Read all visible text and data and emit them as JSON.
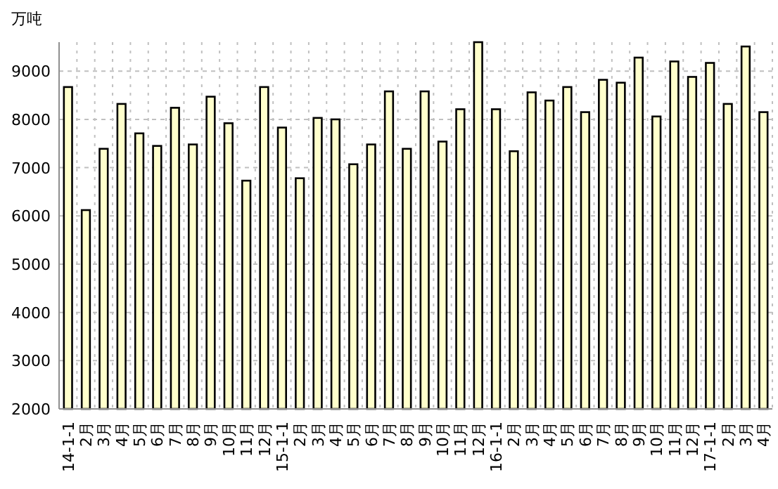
{
  "chart_data": {
    "type": "bar",
    "ylabel": "万吨",
    "categories": [
      "14-1-1",
      "2月",
      "3月",
      "4月",
      "5月",
      "6月",
      "7月",
      "8月",
      "9月",
      "10月",
      "11月",
      "12月",
      "15-1-1",
      "2月",
      "3月",
      "4月",
      "5月",
      "6月",
      "7月",
      "8月",
      "9月",
      "10月",
      "11月",
      "12月",
      "16-1-1",
      "2月",
      "3月",
      "4月",
      "5月",
      "6月",
      "7月",
      "8月",
      "9月",
      "10月",
      "11月",
      "12月",
      "17-1-1",
      "2月",
      "3月",
      "4月"
    ],
    "values": [
      8670,
      6120,
      7390,
      8320,
      7710,
      7450,
      8240,
      7480,
      8470,
      7920,
      6730,
      8670,
      7830,
      6780,
      8030,
      8000,
      7070,
      7480,
      8580,
      7390,
      8580,
      7540,
      8210,
      9600,
      8210,
      7340,
      8560,
      8390,
      8670,
      8150,
      8820,
      8760,
      9280,
      8060,
      9200,
      8880,
      9170,
      8320,
      9510,
      8150
    ],
    "color": "#ffffcc",
    "ylim": [
      2000,
      9600
    ],
    "yticks": [
      2000,
      3000,
      4000,
      5000,
      6000,
      7000,
      8000,
      9000
    ],
    "grid": true
  }
}
